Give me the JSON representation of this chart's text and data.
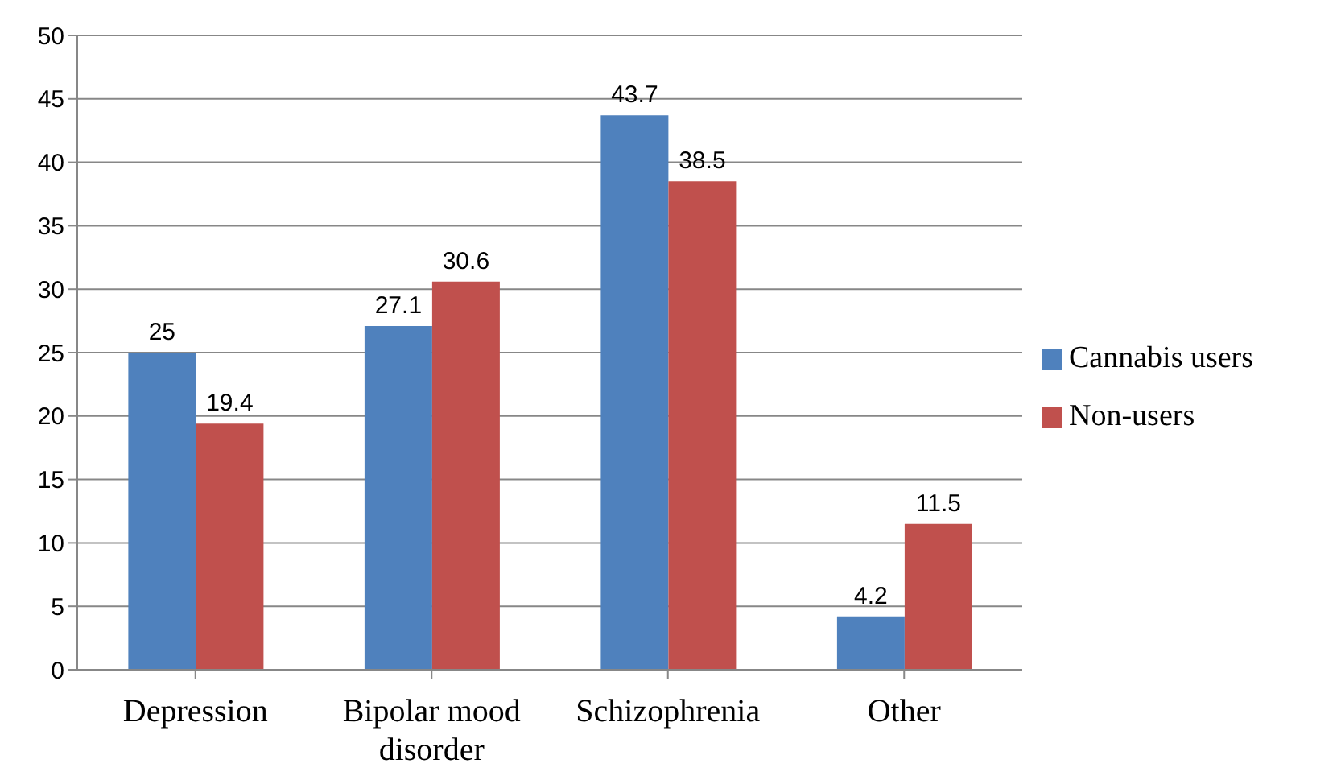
{
  "chart_data": {
    "type": "bar",
    "categories": [
      "Depression",
      "Bipolar mood disorder",
      "Schizophrenia",
      "Other"
    ],
    "series": [
      {
        "name": "Cannabis users",
        "color": "#4f81bd",
        "values": [
          25,
          27.1,
          43.7,
          4.2
        ]
      },
      {
        "name": "Non-users",
        "color": "#c0504d",
        "values": [
          19.4,
          30.6,
          38.5,
          11.5
        ]
      }
    ],
    "ylim": [
      0,
      50
    ],
    "yticks": [
      0,
      5,
      10,
      15,
      20,
      25,
      30,
      35,
      40,
      45,
      50
    ],
    "grid": "y",
    "legend": "right",
    "data_labels": true
  }
}
